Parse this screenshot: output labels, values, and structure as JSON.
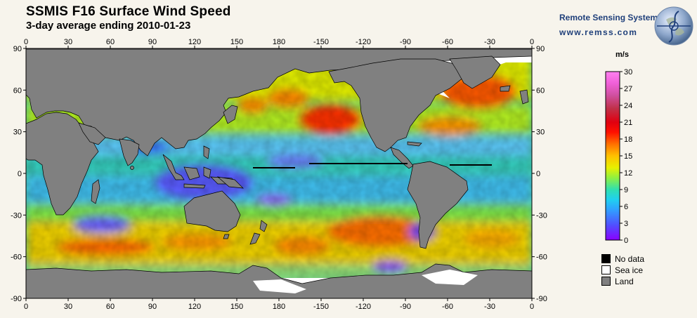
{
  "header": {
    "title": "SSMIS F16 Surface Wind Speed",
    "subtitle": "3-day average ending 2010-01-23"
  },
  "brand": {
    "name": "Remote Sensing Systems",
    "url": "www.remss.com"
  },
  "map": {
    "lon_ticks_top": [
      "0",
      "30",
      "60",
      "90",
      "120",
      "150",
      "180",
      "-150",
      "-120",
      "-90",
      "-60",
      "-30",
      "0"
    ],
    "lon_ticks_bottom": [
      "0",
      "30",
      "60",
      "90",
      "120",
      "150",
      "180",
      "-150",
      "-120",
      "-90",
      "-60",
      "-30",
      "0"
    ],
    "lat_ticks_left": [
      "90",
      "60",
      "30",
      "0",
      "-30",
      "-60",
      "-90"
    ],
    "lat_ticks_right": [
      "90",
      "60",
      "30",
      "0",
      "-30",
      "-60",
      "-90"
    ],
    "colors": {
      "land": "#808080",
      "sea_ice": "#ffffff",
      "no_data": "#000000",
      "frame": "#000000"
    }
  },
  "legend": {
    "units": "m/s",
    "ticks": [
      "30",
      "27",
      "24",
      "21",
      "18",
      "15",
      "12",
      "9",
      "6",
      "3",
      "0"
    ],
    "items": [
      {
        "label": "No data",
        "color": "#000000"
      },
      {
        "label": "Sea ice",
        "color": "#ffffff"
      },
      {
        "label": "Land",
        "color": "#808080"
      }
    ]
  }
}
